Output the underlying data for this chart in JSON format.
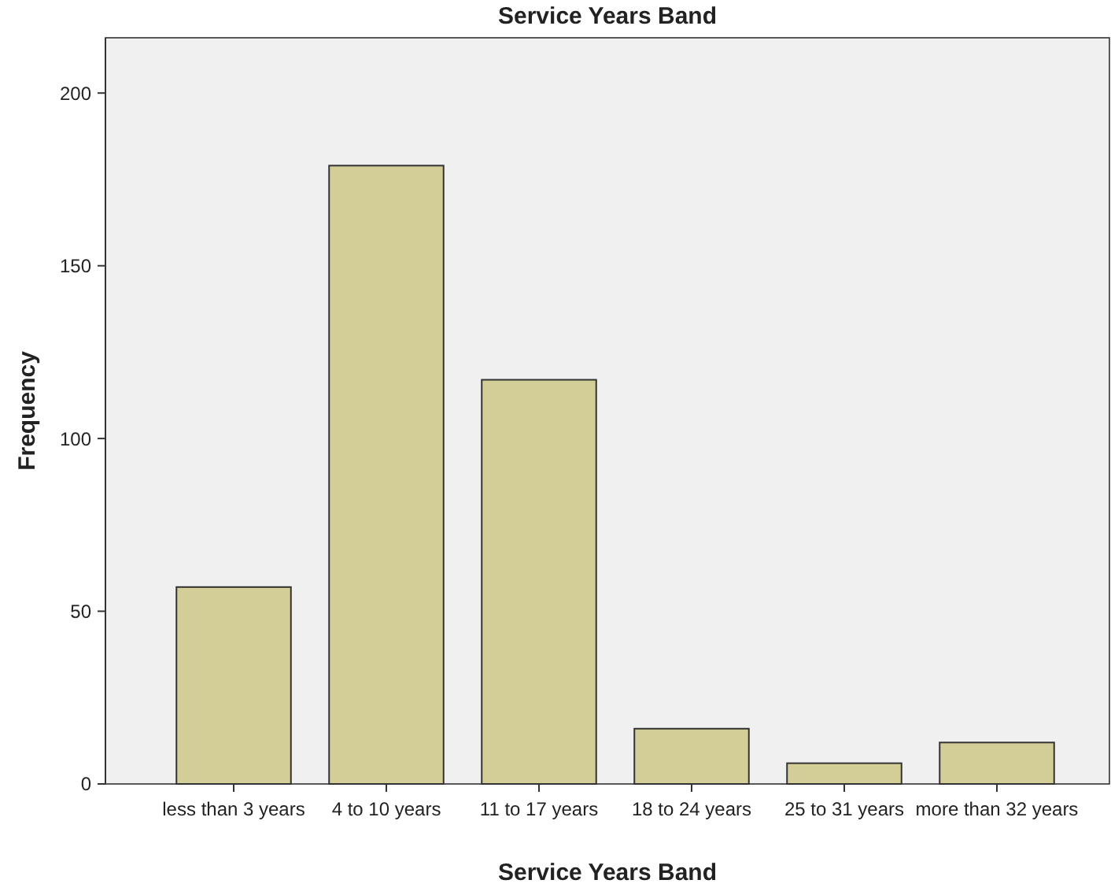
{
  "chart_data": {
    "type": "bar",
    "title": "Service Years Band",
    "xlabel": "Service Years Band",
    "ylabel": "Frequency",
    "categories": [
      "less than 3 years",
      "4 to 10 years",
      "11 to 17 years",
      "18 to 24 years",
      "25 to 31 years",
      "more than 32 years"
    ],
    "values": [
      57,
      179,
      117,
      16,
      6,
      12
    ],
    "color": "#d3ce97",
    "ylim": [
      0,
      216
    ],
    "yticks": [
      0,
      50,
      100,
      150,
      200
    ],
    "grid": false
  }
}
